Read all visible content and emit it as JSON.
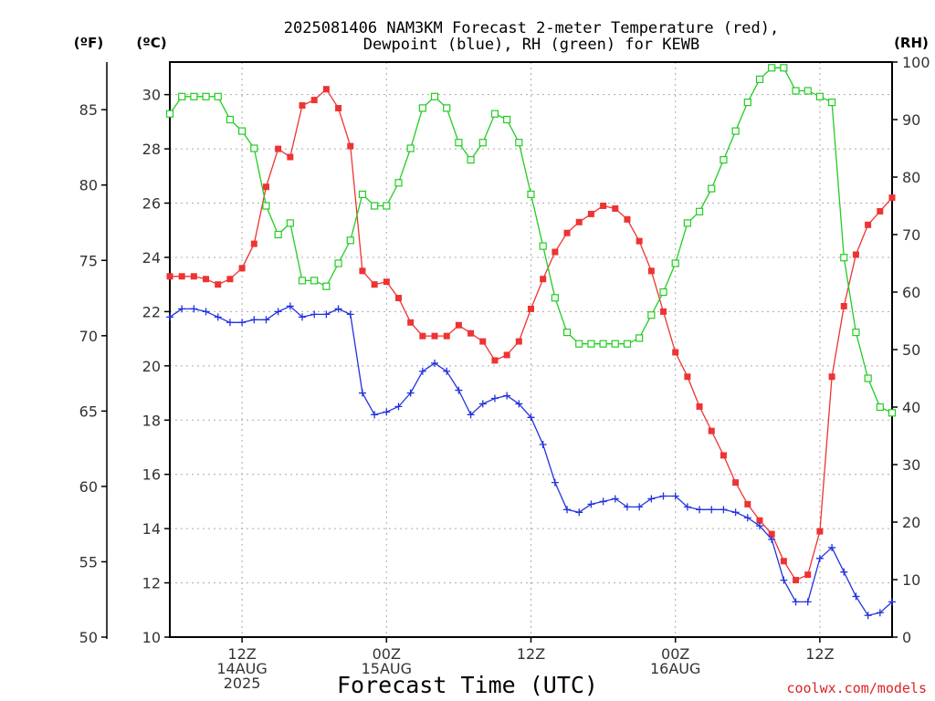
{
  "chart_data": {
    "type": "line",
    "title_line1": "2025081406 NAM3KM Forecast 2-meter Temperature (red),",
    "title_line2": "Dewpoint (blue), RH (green) for KEWB",
    "xlabel": "Forecast Time (UTC)",
    "credit": "coolwx.com/models",
    "units": {
      "fahrenheit": "(ºF)",
      "celsius": "(ºC)",
      "rh": "(RH)"
    },
    "x_range_hours": [
      6,
      66
    ],
    "celsius_axis": {
      "range": [
        10,
        31.2
      ],
      "ticks": [
        10,
        12,
        14,
        16,
        18,
        20,
        22,
        24,
        26,
        28,
        30
      ]
    },
    "fahrenheit_axis": {
      "ticks": [
        50,
        55,
        60,
        65,
        70,
        75,
        80,
        85
      ]
    },
    "rh_axis": {
      "range": [
        0,
        100
      ],
      "ticks": [
        0,
        10,
        20,
        30,
        40,
        50,
        60,
        70,
        80,
        90,
        100
      ]
    },
    "x_ticks": [
      {
        "hour": 12,
        "lines": [
          "12Z",
          "14AUG",
          "2025"
        ]
      },
      {
        "hour": 24,
        "lines": [
          "00Z",
          "15AUG"
        ]
      },
      {
        "hour": 36,
        "lines": [
          "12Z"
        ]
      },
      {
        "hour": 48,
        "lines": [
          "00Z",
          "16AUG"
        ]
      },
      {
        "hour": 60,
        "lines": [
          "12Z"
        ]
      }
    ],
    "series": [
      {
        "key": "temperature",
        "axis": "celsius",
        "color": "#ee3333",
        "marker": "filled-square",
        "hours": [
          6,
          7,
          8,
          9,
          10,
          11,
          12,
          13,
          14,
          15,
          16,
          17,
          18,
          19,
          20,
          21,
          22,
          23,
          24,
          25,
          26,
          27,
          28,
          29,
          30,
          31,
          32,
          33,
          34,
          35,
          36,
          37,
          38,
          39,
          40,
          41,
          42,
          43,
          44,
          45,
          46,
          47,
          48,
          49,
          50,
          51,
          52,
          53,
          54,
          55,
          56,
          57,
          58,
          59,
          60,
          61,
          62,
          63,
          64,
          65,
          66
        ],
        "values": [
          23.3,
          23.3,
          23.3,
          23.2,
          23.0,
          23.2,
          23.6,
          24.5,
          26.6,
          28.0,
          27.7,
          29.6,
          29.8,
          30.2,
          29.5,
          28.1,
          23.5,
          23.0,
          23.1,
          22.5,
          21.6,
          21.1,
          21.1,
          21.1,
          21.5,
          21.2,
          20.9,
          20.2,
          20.4,
          20.9,
          22.1,
          23.2,
          24.2,
          24.9,
          25.3,
          25.6,
          25.9,
          25.8,
          25.4,
          24.6,
          23.5,
          22.0,
          20.5,
          19.6,
          18.5,
          17.6,
          16.7,
          15.7,
          14.9,
          14.3,
          13.8,
          12.8,
          12.1,
          12.3,
          13.9,
          19.6,
          22.2,
          24.1,
          25.2,
          25.7,
          26.2
        ]
      },
      {
        "key": "dewpoint",
        "axis": "celsius",
        "color": "#2233dd",
        "marker": "plus",
        "hours": [
          6,
          7,
          8,
          9,
          10,
          11,
          12,
          13,
          14,
          15,
          16,
          17,
          18,
          19,
          20,
          21,
          22,
          23,
          24,
          25,
          26,
          27,
          28,
          29,
          30,
          31,
          32,
          33,
          34,
          35,
          36,
          37,
          38,
          39,
          40,
          41,
          42,
          43,
          44,
          45,
          46,
          47,
          48,
          49,
          50,
          51,
          52,
          53,
          54,
          55,
          56,
          57,
          58,
          59,
          60,
          61,
          62,
          63,
          64,
          65,
          66
        ],
        "values": [
          21.8,
          22.1,
          22.1,
          22.0,
          21.8,
          21.6,
          21.6,
          21.7,
          21.7,
          22.0,
          22.2,
          21.8,
          21.9,
          21.9,
          22.1,
          21.9,
          19.0,
          18.2,
          18.3,
          18.5,
          19.0,
          19.8,
          20.1,
          19.8,
          19.1,
          18.2,
          18.6,
          18.8,
          18.9,
          18.6,
          18.1,
          17.1,
          15.7,
          14.7,
          14.6,
          14.9,
          15.0,
          15.1,
          14.8,
          14.8,
          15.1,
          15.2,
          15.2,
          14.8,
          14.7,
          14.7,
          14.7,
          14.6,
          14.4,
          14.1,
          13.6,
          12.1,
          11.3,
          11.3,
          12.9,
          13.3,
          12.4,
          11.5,
          10.8,
          10.9,
          11.3
        ]
      },
      {
        "key": "rh",
        "axis": "rh",
        "color": "#22cc22",
        "marker": "open-square",
        "hours": [
          6,
          7,
          8,
          9,
          10,
          11,
          12,
          13,
          14,
          15,
          16,
          17,
          18,
          19,
          20,
          21,
          22,
          23,
          24,
          25,
          26,
          27,
          28,
          29,
          30,
          31,
          32,
          33,
          34,
          35,
          36,
          37,
          38,
          39,
          40,
          41,
          42,
          43,
          44,
          45,
          46,
          47,
          48,
          49,
          50,
          51,
          52,
          53,
          54,
          55,
          56,
          57,
          58,
          59,
          60,
          61,
          62,
          63,
          64,
          65,
          66
        ],
        "values": [
          91,
          94,
          94,
          94,
          94,
          90,
          88,
          85,
          75,
          70,
          72,
          62,
          62,
          61,
          65,
          69,
          77,
          75,
          75,
          79,
          85,
          92,
          94,
          92,
          86,
          83,
          86,
          91,
          90,
          86,
          77,
          68,
          59,
          53,
          51,
          51,
          51,
          51,
          51,
          52,
          56,
          60,
          65,
          72,
          74,
          78,
          83,
          88,
          93,
          97,
          99,
          99,
          95,
          95,
          94,
          93,
          66,
          53,
          45,
          40,
          39
        ]
      }
    ]
  }
}
